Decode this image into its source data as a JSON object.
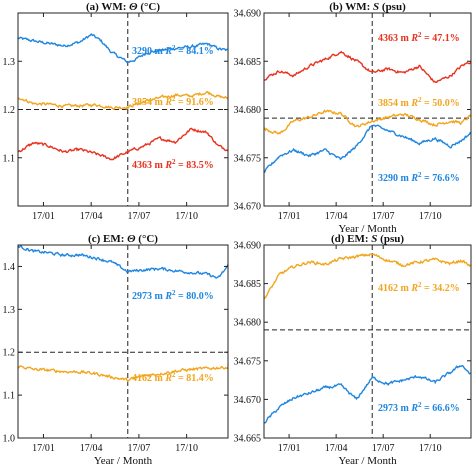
{
  "chart_data": [
    {
      "type": "line",
      "panel": "(a)",
      "title": {
        "prefix": "(a)",
        "region": "WM:",
        "variable": "Θ (°C)"
      },
      "xlabel": "",
      "ylim": [
        1.0,
        1.4
      ],
      "yticks": [
        "1.1",
        "1.2",
        "1.3"
      ],
      "ytick_values": [
        1.1,
        1.2,
        1.3
      ],
      "xticks": [
        "17/01",
        "17/04",
        "17/07",
        "17/10"
      ],
      "xtick_values": [
        0,
        3,
        6,
        9
      ],
      "xlim": [
        -1.6,
        11.6
      ],
      "vline": 5.3,
      "hline": 1.2,
      "series": [
        {
          "color": "#1f86e0",
          "depth": "3290 m",
          "r2": "84.1%",
          "x": [
            -1.6,
            -0.6,
            0.3,
            1.3,
            2.3,
            3.0,
            3.6,
            4.3,
            5.3,
            5.8,
            6.5,
            7.3,
            8.3,
            9.3,
            10.3,
            11.0,
            11.6
          ],
          "y": [
            1.348,
            1.342,
            1.337,
            1.332,
            1.34,
            1.355,
            1.343,
            1.318,
            1.298,
            1.304,
            1.318,
            1.322,
            1.327,
            1.33,
            1.336,
            1.326,
            1.322
          ]
        },
        {
          "color": "#f2a51d",
          "depth": "3854 m",
          "r2": "91.6%",
          "x": [
            -1.6,
            -0.6,
            0.3,
            1.3,
            2.3,
            3.3,
            4.3,
            5.3,
            6.3,
            7.3,
            8.3,
            9.3,
            10.3,
            11.0,
            11.6
          ],
          "y": [
            1.226,
            1.212,
            1.211,
            1.207,
            1.208,
            1.21,
            1.204,
            1.205,
            1.216,
            1.224,
            1.23,
            1.228,
            1.236,
            1.227,
            1.223
          ]
        },
        {
          "color": "#e8321e",
          "depth": "4363 m",
          "r2": "83.5%",
          "x": [
            -1.6,
            -0.6,
            0.3,
            1.3,
            2.3,
            3.3,
            4.3,
            5.3,
            6.3,
            7.3,
            8.3,
            9.3,
            10.3,
            11.0,
            11.6
          ],
          "y": [
            1.112,
            1.131,
            1.125,
            1.112,
            1.117,
            1.108,
            1.097,
            1.112,
            1.124,
            1.14,
            1.133,
            1.16,
            1.152,
            1.124,
            1.117
          ]
        }
      ]
    },
    {
      "type": "line",
      "panel": "(b)",
      "title": {
        "prefix": "(b)",
        "region": "WM:",
        "variable": "S (psu)"
      },
      "xlabel": "Year / Month",
      "ylim": [
        34.67,
        34.69
      ],
      "yticks": [
        "34.670",
        "34.675",
        "34.680",
        "34.685",
        "34.690"
      ],
      "ytick_values": [
        34.67,
        34.675,
        34.68,
        34.685,
        34.69
      ],
      "xticks": [
        "17/01",
        "17/04",
        "17/07",
        "17/10"
      ],
      "xtick_values": [
        0,
        3,
        6,
        9
      ],
      "xlim": [
        -1.6,
        11.6
      ],
      "vline": 5.3,
      "hline": 34.6791,
      "series": [
        {
          "color": "#e8321e",
          "depth": "4363 m",
          "r2": "47.1%",
          "x": [
            -1.6,
            -0.6,
            0.3,
            1.3,
            2.3,
            3.3,
            4.3,
            5.3,
            6.3,
            7.3,
            8.3,
            9.3,
            10.3,
            11.0,
            11.6
          ],
          "y": [
            34.6832,
            34.684,
            34.6835,
            34.6845,
            34.6852,
            34.686,
            34.685,
            34.6838,
            34.6842,
            34.6838,
            34.6845,
            34.6828,
            34.6835,
            34.6845,
            34.685
          ]
        },
        {
          "color": "#f2a51d",
          "depth": "3854 m",
          "r2": "50.0%",
          "x": [
            -1.6,
            -0.6,
            0.3,
            1.3,
            2.3,
            3.3,
            4.3,
            5.3,
            6.3,
            7.3,
            8.3,
            9.3,
            10.3,
            11.0,
            11.6
          ],
          "y": [
            34.678,
            34.6775,
            34.6788,
            34.6792,
            34.6798,
            34.6796,
            34.6782,
            34.6788,
            34.6792,
            34.6795,
            34.679,
            34.6784,
            34.6788,
            34.6786,
            34.6794
          ]
        },
        {
          "color": "#1f86e0",
          "depth": "3290 m",
          "r2": "76.6%",
          "x": [
            -1.6,
            -0.6,
            0.3,
            1.3,
            2.3,
            3.3,
            4.3,
            5.3,
            6.3,
            7.3,
            8.3,
            9.3,
            10.3,
            11.0,
            11.6
          ],
          "y": [
            34.6735,
            34.6752,
            34.6758,
            34.6752,
            34.6758,
            34.6748,
            34.6762,
            34.6784,
            34.6778,
            34.6772,
            34.6765,
            34.677,
            34.6762,
            34.6768,
            34.6776
          ]
        }
      ]
    },
    {
      "type": "line",
      "panel": "(c)",
      "title": {
        "prefix": "(c)",
        "region": "EM:",
        "variable": "Θ (°C)"
      },
      "xlabel": "Year / Month",
      "ylim": [
        1.0,
        1.45
      ],
      "yticks": [
        "1.0",
        "1.1",
        "1.2",
        "1.3",
        "1.4"
      ],
      "ytick_values": [
        1.0,
        1.1,
        1.2,
        1.3,
        1.4
      ],
      "xticks": [
        "17/01",
        "17/04",
        "17/07",
        "17/10"
      ],
      "xtick_values": [
        0,
        3,
        6,
        9
      ],
      "xlim": [
        -1.6,
        11.6
      ],
      "vline": 5.3,
      "hline": 1.2,
      "series": [
        {
          "color": "#1f86e0",
          "depth": "2973 m",
          "r2": "80.0%",
          "x": [
            -1.6,
            -0.6,
            0.3,
            1.3,
            2.3,
            3.3,
            4.3,
            5.3,
            6.3,
            7.3,
            8.3,
            9.3,
            10.3,
            11.0,
            11.6
          ],
          "y": [
            1.448,
            1.435,
            1.432,
            1.426,
            1.427,
            1.42,
            1.41,
            1.388,
            1.392,
            1.395,
            1.39,
            1.386,
            1.382,
            1.372,
            1.402
          ]
        },
        {
          "color": "#f2a51d",
          "depth": "4162 m",
          "r2": "81.4%",
          "x": [
            -1.6,
            -0.6,
            0.3,
            1.3,
            2.3,
            3.3,
            4.3,
            5.3,
            6.3,
            7.3,
            8.3,
            9.3,
            10.3,
            11.0,
            11.6
          ],
          "y": [
            1.168,
            1.16,
            1.158,
            1.155,
            1.154,
            1.15,
            1.142,
            1.135,
            1.145,
            1.15,
            1.156,
            1.16,
            1.162,
            1.164,
            1.165
          ]
        }
      ]
    },
    {
      "type": "line",
      "panel": "(d)",
      "title": {
        "prefix": "(d)",
        "region": "EM:",
        "variable": "S (psu)"
      },
      "xlabel": "Year / Month",
      "ylim": [
        34.665,
        34.69
      ],
      "yticks": [
        "34.665",
        "34.670",
        "34.675",
        "34.680",
        "34.685",
        "34.690"
      ],
      "ytick_values": [
        34.665,
        34.67,
        34.675,
        34.68,
        34.685,
        34.69
      ],
      "xticks": [
        "17/01",
        "17/04",
        "17/07",
        "17/10"
      ],
      "xtick_values": [
        0,
        3,
        6,
        9
      ],
      "xlim": [
        -1.6,
        11.6
      ],
      "vline": 5.3,
      "hline": 34.679,
      "series": [
        {
          "color": "#f2a51d",
          "depth": "4162 m",
          "r2": "34.2%",
          "x": [
            -1.6,
            -0.6,
            0.3,
            1.3,
            2.3,
            3.3,
            4.3,
            5.3,
            6.3,
            7.3,
            8.3,
            9.3,
            10.3,
            11.0,
            11.6
          ],
          "y": [
            34.683,
            34.6862,
            34.6872,
            34.6878,
            34.6875,
            34.6882,
            34.6885,
            34.6888,
            34.688,
            34.6874,
            34.6878,
            34.6881,
            34.6876,
            34.688,
            34.6872
          ]
        },
        {
          "color": "#1f86e0",
          "depth": "2973 m",
          "r2": "66.6%",
          "x": [
            -1.6,
            -0.6,
            0.3,
            1.3,
            2.3,
            3.3,
            4.3,
            5.3,
            6.3,
            7.3,
            8.3,
            9.3,
            10.3,
            11.0,
            11.6
          ],
          "y": [
            34.667,
            34.669,
            34.6702,
            34.6708,
            34.6715,
            34.6718,
            34.67,
            34.6728,
            34.672,
            34.6725,
            34.673,
            34.6722,
            34.6735,
            34.6745,
            34.6732
          ]
        }
      ]
    }
  ]
}
